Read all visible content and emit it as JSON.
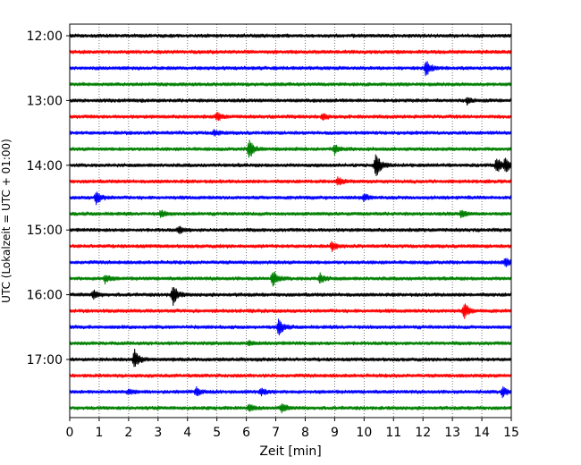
{
  "chart_data": {
    "type": "line",
    "title": "",
    "xlabel": "Zeit  [min]",
    "ylabel": "UTC (Lokalzeit = UTC + 01:00)",
    "xlim": [
      0,
      15
    ],
    "x_ticks": [
      0,
      1,
      2,
      3,
      4,
      5,
      6,
      7,
      8,
      9,
      10,
      11,
      12,
      13,
      14,
      15
    ],
    "y_ticks": [
      "12:00",
      "13:00",
      "14:00",
      "15:00",
      "16:00",
      "17:00"
    ],
    "grid": "vertical dotted lines at each minute",
    "trace_minutes": 15,
    "color_cycle": [
      "#000000",
      "#ff0000",
      "#0000ff",
      "#008000"
    ],
    "series": [
      {
        "start": "12:00",
        "color": "#000000",
        "events": []
      },
      {
        "start": "12:15",
        "color": "#ff0000",
        "events": []
      },
      {
        "start": "12:30",
        "color": "#0000ff",
        "events": [
          {
            "t": 12.1,
            "amp": 1.0
          }
        ]
      },
      {
        "start": "12:45",
        "color": "#008000",
        "events": []
      },
      {
        "start": "13:00",
        "color": "#000000",
        "events": [
          {
            "t": 13.5,
            "amp": 0.4
          }
        ]
      },
      {
        "start": "13:15",
        "color": "#ff0000",
        "events": [
          {
            "t": 5.0,
            "amp": 0.5
          },
          {
            "t": 8.6,
            "amp": 0.4
          }
        ]
      },
      {
        "start": "13:30",
        "color": "#0000ff",
        "events": [
          {
            "t": 4.9,
            "amp": 0.35
          }
        ]
      },
      {
        "start": "13:45",
        "color": "#008000",
        "events": [
          {
            "t": 6.1,
            "amp": 1.2
          },
          {
            "t": 9.0,
            "amp": 0.6
          }
        ]
      },
      {
        "start": "14:00",
        "color": "#000000",
        "events": [
          {
            "t": 10.4,
            "amp": 1.6
          },
          {
            "t": 14.5,
            "amp": 1.0
          },
          {
            "t": 14.8,
            "amp": 1.0
          }
        ]
      },
      {
        "start": "14:15",
        "color": "#ff0000",
        "events": [
          {
            "t": 9.1,
            "amp": 0.5
          }
        ]
      },
      {
        "start": "14:30",
        "color": "#0000ff",
        "events": [
          {
            "t": 0.9,
            "amp": 0.9
          },
          {
            "t": 10.0,
            "amp": 0.4
          }
        ]
      },
      {
        "start": "14:45",
        "color": "#008000",
        "events": [
          {
            "t": 3.1,
            "amp": 0.4
          },
          {
            "t": 13.3,
            "amp": 0.4
          }
        ]
      },
      {
        "start": "15:00",
        "color": "#000000",
        "events": [
          {
            "t": 3.7,
            "amp": 0.4
          }
        ]
      },
      {
        "start": "15:15",
        "color": "#ff0000",
        "events": [
          {
            "t": 8.9,
            "amp": 0.5
          }
        ]
      },
      {
        "start": "15:30",
        "color": "#0000ff",
        "events": [
          {
            "t": 14.8,
            "amp": 0.5
          }
        ]
      },
      {
        "start": "15:45",
        "color": "#008000",
        "events": [
          {
            "t": 6.9,
            "amp": 1.0
          },
          {
            "t": 1.2,
            "amp": 0.5
          },
          {
            "t": 8.5,
            "amp": 0.6
          }
        ]
      },
      {
        "start": "16:00",
        "color": "#000000",
        "events": [
          {
            "t": 3.5,
            "amp": 1.3
          },
          {
            "t": 0.8,
            "amp": 0.5
          }
        ]
      },
      {
        "start": "16:15",
        "color": "#ff0000",
        "events": [
          {
            "t": 13.4,
            "amp": 1.0
          }
        ]
      },
      {
        "start": "16:30",
        "color": "#0000ff",
        "events": [
          {
            "t": 7.1,
            "amp": 1.0
          }
        ]
      },
      {
        "start": "16:45",
        "color": "#008000",
        "events": [
          {
            "t": 6.1,
            "amp": 0.3
          }
        ]
      },
      {
        "start": "17:00",
        "color": "#000000",
        "events": [
          {
            "t": 2.2,
            "amp": 1.2
          }
        ]
      },
      {
        "start": "17:15",
        "color": "#ff0000",
        "events": []
      },
      {
        "start": "17:30",
        "color": "#0000ff",
        "events": [
          {
            "t": 4.3,
            "amp": 0.5
          },
          {
            "t": 6.5,
            "amp": 0.4
          },
          {
            "t": 14.7,
            "amp": 0.6
          },
          {
            "t": 2.0,
            "amp": 0.3
          }
        ]
      },
      {
        "start": "17:45",
        "color": "#008000",
        "events": [
          {
            "t": 6.1,
            "amp": 0.5
          },
          {
            "t": 7.2,
            "amp": 0.5
          }
        ]
      }
    ]
  }
}
